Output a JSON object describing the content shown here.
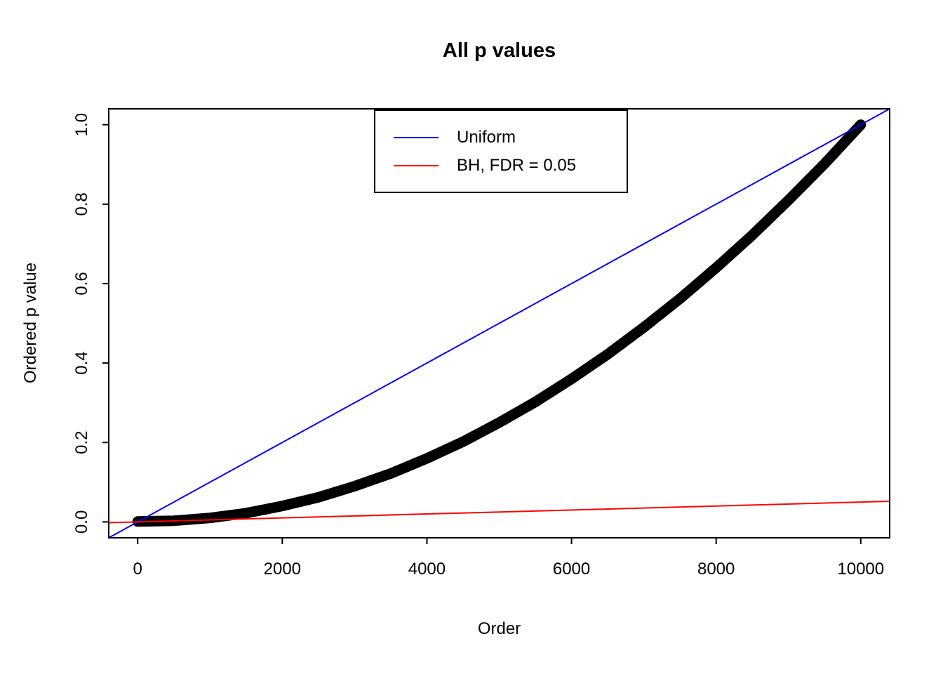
{
  "chart_data": {
    "type": "line",
    "title": "All p values",
    "xlabel": "Order",
    "ylabel": "Ordered p value",
    "xlim": [
      0,
      10000
    ],
    "ylim": [
      0,
      1
    ],
    "grid": false,
    "x_ticks": [
      0,
      2000,
      4000,
      6000,
      8000,
      10000
    ],
    "x_tick_labels": [
      "0",
      "2000",
      "4000",
      "6000",
      "8000",
      "10000"
    ],
    "y_ticks": [
      0,
      0.2,
      0.4,
      0.6,
      0.8,
      1
    ],
    "y_tick_labels": [
      "0.0",
      "0.2",
      "0.4",
      "0.6",
      "0.8",
      "1.0"
    ],
    "legend": {
      "position": "top-center",
      "items": [
        {
          "label": "Uniform",
          "color": "#0000FF"
        },
        {
          "label": "BH, FDR = 0.05",
          "color": "#FF0000"
        }
      ]
    },
    "series": [
      {
        "name": "Ordered p values",
        "type": "curve",
        "color": "#000000",
        "line_width": 15,
        "x": [
          0,
          500,
          1000,
          1500,
          2000,
          2500,
          3000,
          3500,
          4000,
          4500,
          5000,
          5500,
          6000,
          6500,
          7000,
          7500,
          8000,
          8500,
          9000,
          9500,
          10000
        ],
        "y": [
          0.001,
          0.003,
          0.01,
          0.022,
          0.04,
          0.062,
          0.09,
          0.122,
          0.16,
          0.202,
          0.25,
          0.302,
          0.36,
          0.422,
          0.49,
          0.562,
          0.64,
          0.722,
          0.81,
          0.902,
          1.0
        ]
      },
      {
        "name": "Uniform",
        "type": "abline",
        "color": "#0000FF",
        "intercept": 0,
        "slope": 0.0001
      },
      {
        "name": "BH, FDR = 0.05",
        "type": "abline",
        "color": "#FF0000",
        "intercept": 0,
        "slope": 5e-06
      }
    ]
  },
  "colors": {
    "background": "#FFFFFF",
    "foreground": "#000000",
    "uniform_line": "#0000FF",
    "bh_line": "#FF0000"
  }
}
